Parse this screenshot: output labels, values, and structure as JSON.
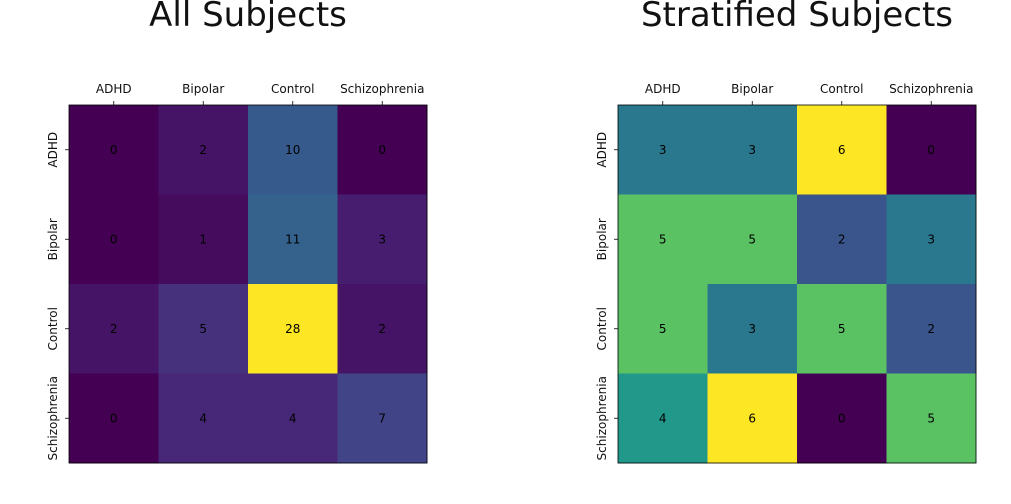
{
  "chart_data": [
    {
      "type": "heatmap",
      "title": "All Subjects",
      "xlabel": "",
      "ylabel": "",
      "x_categories": [
        "ADHD",
        "Bipolar",
        "Control",
        "Schizophrenia"
      ],
      "y_categories": [
        "ADHD",
        "Bipolar",
        "Control",
        "Schizophrenia"
      ],
      "values": [
        [
          0,
          2,
          10,
          0
        ],
        [
          0,
          1,
          11,
          3
        ],
        [
          2,
          5,
          28,
          2
        ],
        [
          0,
          4,
          4,
          7
        ]
      ],
      "colormap": "viridis",
      "x_tick_position": "top",
      "grid": false
    },
    {
      "type": "heatmap",
      "title": "Stratified Subjects",
      "xlabel": "",
      "ylabel": "",
      "x_categories": [
        "ADHD",
        "Bipolar",
        "Control",
        "Schizophrenia"
      ],
      "y_categories": [
        "ADHD",
        "Bipolar",
        "Control",
        "Schizophrenia"
      ],
      "values": [
        [
          3,
          3,
          6,
          0
        ],
        [
          5,
          5,
          2,
          3
        ],
        [
          5,
          3,
          5,
          2
        ],
        [
          4,
          6,
          0,
          5
        ]
      ],
      "colormap": "viridis",
      "x_tick_position": "top",
      "grid": false
    }
  ]
}
